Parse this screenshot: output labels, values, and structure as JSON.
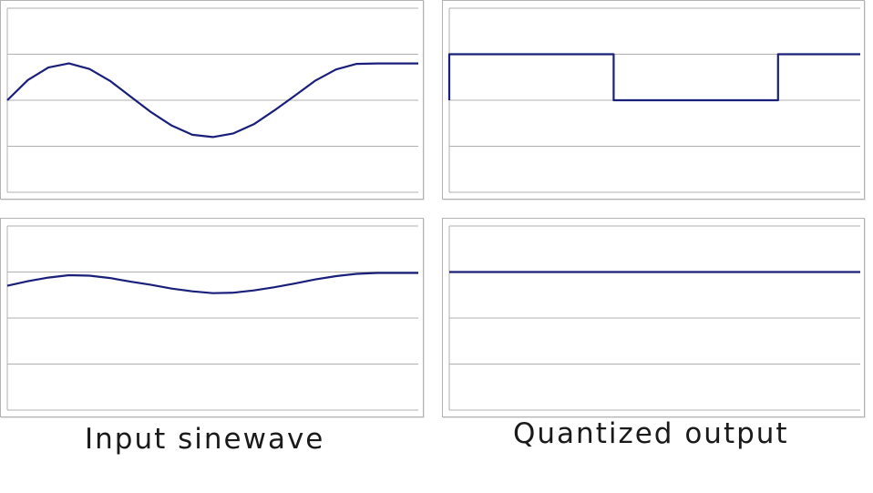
{
  "captions": {
    "left": "Input sinewave",
    "right": "Quantized output"
  },
  "colors": {
    "series": "#1a1f7a",
    "grid": "#b0b0b0",
    "frame": "#b3b3b3"
  },
  "chart_data": [
    {
      "id": "input-large",
      "type": "line",
      "ylim": [
        -2,
        2
      ],
      "y_gridlines": [
        -2,
        -1,
        0,
        1,
        2
      ],
      "grid": true,
      "legend": "none",
      "series": [
        {
          "x": [
            0,
            0.05,
            0.1,
            0.15,
            0.2,
            0.25,
            0.3,
            0.35,
            0.4,
            0.45,
            0.5,
            0.55,
            0.6,
            0.65,
            0.7,
            0.75,
            0.8,
            0.85,
            0.9,
            0.95,
            1.0
          ],
          "values": [
            0.0,
            0.44,
            0.71,
            0.8,
            0.68,
            0.42,
            0.08,
            -0.26,
            -0.55,
            -0.75,
            -0.8,
            -0.72,
            -0.52,
            -0.22,
            0.1,
            0.43,
            0.67,
            0.79,
            0.8,
            0.8,
            0.8
          ]
        }
      ]
    },
    {
      "id": "output-large",
      "type": "line",
      "ylim": [
        -2,
        2
      ],
      "y_gridlines": [
        -2,
        -1,
        0,
        1,
        2
      ],
      "grid": true,
      "legend": "none",
      "series": [
        {
          "x": [
            0,
            0,
            0.4,
            0.4,
            0.8,
            0.8,
            1.0
          ],
          "values": [
            0,
            1,
            1,
            0,
            0,
            1,
            1
          ]
        }
      ]
    },
    {
      "id": "input-small",
      "type": "line",
      "ylim": [
        -2,
        2
      ],
      "y_gridlines": [
        -2,
        -1,
        0,
        1,
        2
      ],
      "grid": true,
      "legend": "none",
      "series": [
        {
          "x": [
            0,
            0.05,
            0.1,
            0.15,
            0.2,
            0.25,
            0.3,
            0.35,
            0.4,
            0.45,
            0.5,
            0.55,
            0.6,
            0.65,
            0.7,
            0.75,
            0.8,
            0.85,
            0.9,
            0.95,
            1.0
          ],
          "values": [
            0.7,
            0.8,
            0.88,
            0.93,
            0.92,
            0.87,
            0.79,
            0.72,
            0.64,
            0.58,
            0.54,
            0.55,
            0.6,
            0.67,
            0.75,
            0.84,
            0.91,
            0.96,
            0.98,
            0.98,
            0.98
          ]
        }
      ]
    },
    {
      "id": "output-small",
      "type": "line",
      "ylim": [
        -2,
        2
      ],
      "y_gridlines": [
        -2,
        -1,
        0,
        1,
        2
      ],
      "grid": true,
      "legend": "none",
      "series": [
        {
          "x": [
            0,
            1.0
          ],
          "values": [
            1,
            1
          ]
        }
      ]
    }
  ]
}
